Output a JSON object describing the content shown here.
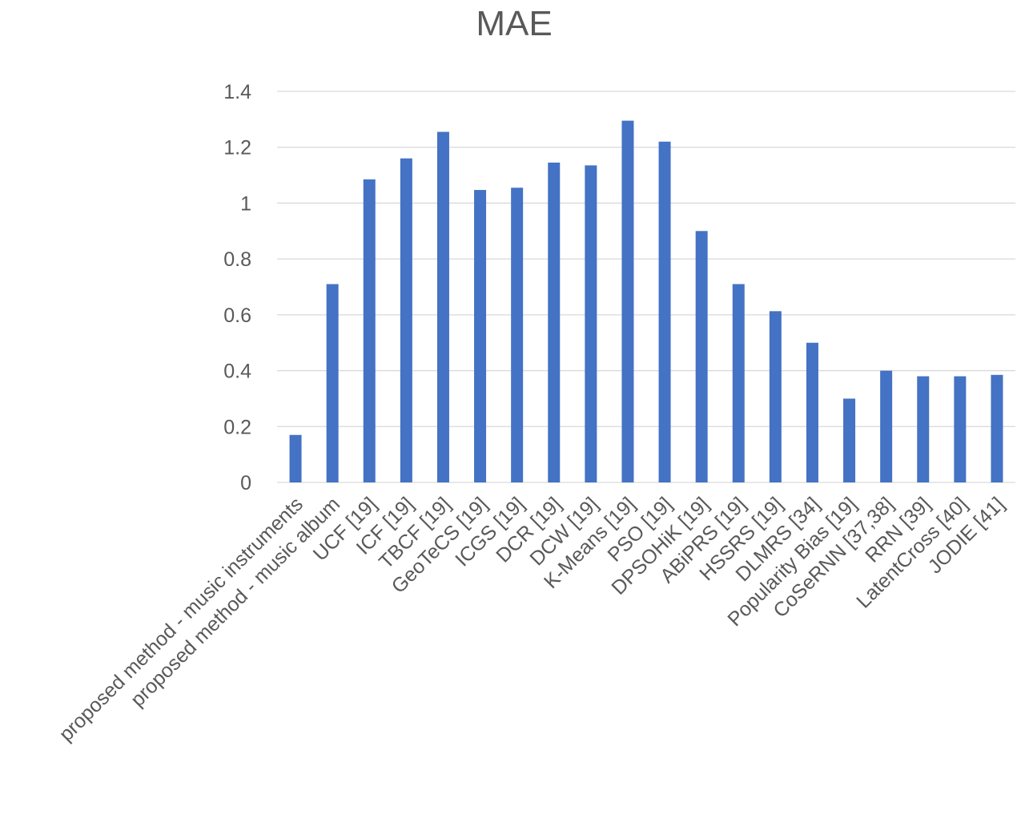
{
  "chart_data": {
    "type": "bar",
    "title": "MAE",
    "xlabel": "",
    "ylabel": "",
    "ylim": [
      0,
      1.4
    ],
    "yticks": [
      0,
      0.2,
      0.4,
      0.6,
      0.8,
      1,
      1.2,
      1.4
    ],
    "ytick_labels": [
      "0",
      "0.2",
      "0.4",
      "0.6",
      "0.8",
      "1",
      "1.2",
      "1.4"
    ],
    "grid": true,
    "legend": "none",
    "bar_color": "#4472c4",
    "categories": [
      "proposed method - music instruments",
      "proposed method - music album",
      "UCF [19]",
      "ICF [19]",
      "TBCF [19]",
      "GeoTeCS [19]",
      "ICGS [19]",
      "DCR [19]",
      "DCW [19]",
      "K-Means [19]",
      "PSO [19]",
      "DPSOHiK [19]",
      "ABiPRS [19]",
      "HSSRS [19]",
      "DLMRS [34]",
      "Popularity Bias [19]",
      "CoSeRNN [37,38]",
      "RRN [39]",
      "LatentCross [40]",
      "JODIE [41]"
    ],
    "values": [
      0.17,
      0.71,
      1.085,
      1.16,
      1.255,
      1.047,
      1.055,
      1.145,
      1.135,
      1.295,
      1.22,
      0.9,
      0.71,
      0.613,
      0.5,
      0.3,
      0.4,
      0.38,
      0.38,
      0.385
    ]
  }
}
